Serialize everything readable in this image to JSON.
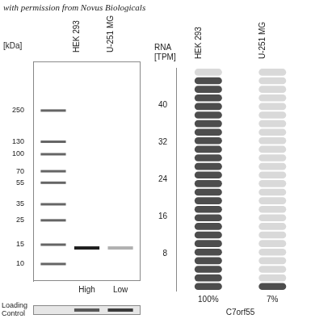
{
  "chart_data": [
    {
      "type": "western_blot",
      "annotation": "with permission from Novus Biologicals",
      "y_label": "[kDa]",
      "categories": [
        null,
        "HEK 293",
        "U-251 MG"
      ],
      "log": "y",
      "ylim": [
        7,
        700
      ],
      "yticks": [
        250,
        130,
        100,
        70,
        55,
        35,
        25,
        15,
        10
      ],
      "bands": [
        {
          "lane": "HEK 293",
          "kDa": 14,
          "intensity": 1
        },
        {
          "lane": "U-251 MG",
          "kDa": 14,
          "intensity": 0.35
        }
      ],
      "lane_labels": [
        null,
        "High",
        "Low"
      ],
      "loading_control": {
        "label": "Loading Control",
        "intensity": [
          null,
          0.75,
          0.9
        ]
      }
    },
    {
      "type": "bar",
      "y_label": "RNA [TPM]",
      "categories": [
        "HEK 293",
        "U-251 MG"
      ],
      "values": [
        46.2,
        3.2
      ],
      "relative_labels": [
        "100%",
        "7%"
      ],
      "x_label": "C7orf55",
      "ylim": [
        0,
        48
      ],
      "yticks": [
        8,
        16,
        24,
        32,
        40
      ],
      "color": "#4d4d4d",
      "grid": false
    }
  ]
}
